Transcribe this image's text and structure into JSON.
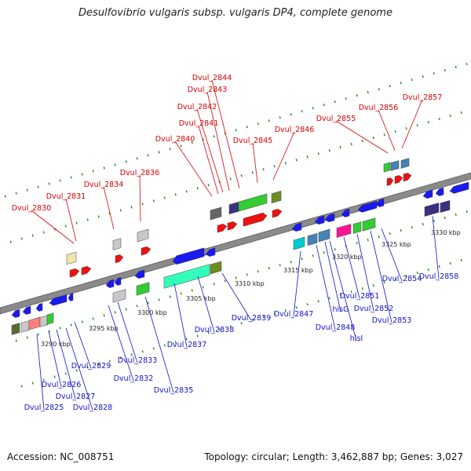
{
  "title": "Desulfovibrio vulgaris subsp. vulgaris DP4, complete genome",
  "footer": {
    "accession": "Accession: NC_008751",
    "summary": "Topology: circular; Length: 3,462,887 bp; Genes: 3,027"
  },
  "colors": {
    "forward_label": "#dd0000",
    "reverse_label": "#1111cc",
    "backbone": "#888888",
    "tick": "#2e8b2e"
  },
  "ruler": [
    "3290 kbp",
    "3295 kbp",
    "3300 kbp",
    "3305 kbp",
    "3310 kbp",
    "3315 kbp",
    "3320 kbp",
    "3325 kbp",
    "3330 kbp"
  ],
  "forward_genes": [
    "Dvul_2830",
    "Dvul_2831",
    "Dvul_2834",
    "Dvul_2836",
    "Dvul_2840",
    "Dvul_2841",
    "Dvul_2842",
    "Dvul_2843",
    "Dvul_2844",
    "Dvul_2845",
    "Dvul_2846",
    "Dvul_2855",
    "Dvul_2856",
    "Dvul_2857"
  ],
  "reverse_genes": [
    "Dvul_2825",
    "Dvul_2826",
    "Dvul_2827",
    "Dvul_2828",
    "Dvul_2829",
    "Dvul_2832",
    "Dvul_2833",
    "Dvul_2835",
    "Dvul_2837",
    "Dvul_2838",
    "Dvul_2839",
    "Dvul_2847",
    "Dvul_2848",
    "hisG",
    "hisI",
    "Dvul_2851",
    "Dvul_2852",
    "Dvul_2853",
    "Dvul_2854",
    "Dvul_2858"
  ]
}
